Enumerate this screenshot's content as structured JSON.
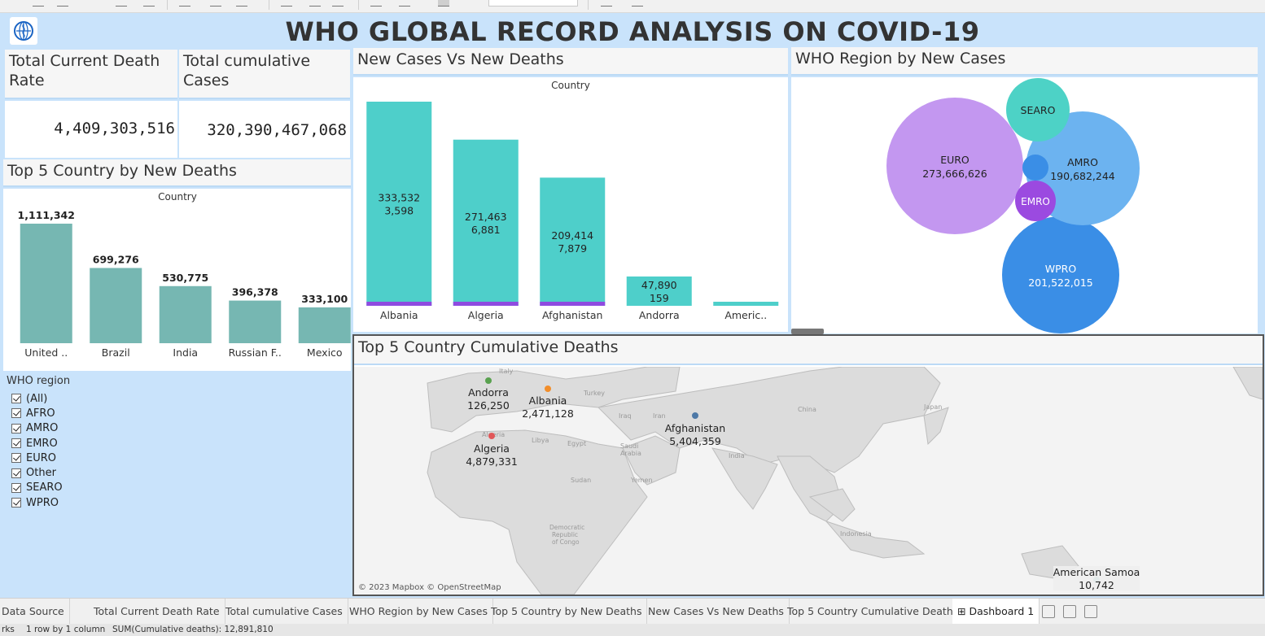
{
  "dashboard": {
    "title": "WHO GLOBAL RECORD ANALYSIS ON COVID-19"
  },
  "kpis": {
    "death_rate": {
      "title": "Total Current Death Rate",
      "value": "4,409,303,516"
    },
    "cumulative_cases": {
      "title": "Total cumulative Cases",
      "value": "320,390,467,068"
    }
  },
  "top5_deaths": {
    "header": "Top  5 Country by New Deaths",
    "axis_title": "Country"
  },
  "new_cases_vs_deaths": {
    "header": "New Cases Vs New Deaths",
    "axis_title": "Country"
  },
  "region_bubbles": {
    "header": "WHO Region by New Cases"
  },
  "map": {
    "header": "Top 5 Country Cumulative Deaths",
    "attribution": "© 2023 Mapbox © OpenStreetMap",
    "places": [
      "Italy",
      "Turkey",
      "Libya",
      "Egypt",
      "Iraq",
      "Iran",
      "Saudi Arabia",
      "China",
      "India",
      "Japan",
      "Sudan",
      "Yemen",
      "Democratic Republic of Congo",
      "Indonesia",
      "Algeria"
    ]
  },
  "filter": {
    "title": "WHO region",
    "options": [
      "(All)",
      "AFRO",
      "AMRO",
      "EMRO",
      "EURO",
      "Other",
      "SEARO",
      "WPRO"
    ]
  },
  "tabs": [
    "Data Source",
    "Total Current Death Rate",
    "Total cumulative Cases",
    "WHO Region by New Cases",
    "Top  5 Country by New Deaths",
    "New Cases Vs New Deaths",
    "Top 5 Country Cumulative Deaths",
    "Dashboard 1"
  ],
  "status": {
    "marks": "rks",
    "dims": "1 row by 1 column",
    "sum": "SUM(Cumulative deaths): 12,891,810"
  },
  "colors": {
    "teal_bar": "#76b7b2",
    "cyan_bar": "#4ecfca",
    "purple_deaths": "#8f4be0",
    "dashboard_bg": "#c9e3fb",
    "euro": "#c397f0",
    "searo": "#4dd2c6",
    "amro": "#6cb3f0",
    "emro": "#9b4ae0",
    "wpro": "#3a8ee6",
    "small_bubble": "#3a8ee6"
  },
  "chart_data": [
    {
      "type": "bar",
      "title": "Top  5 Country by New Deaths",
      "xlabel": "Country",
      "categories": [
        "United ..",
        "Brazil",
        "India",
        "Russian F..",
        "Mexico"
      ],
      "values": [
        1111342,
        699276,
        530775,
        396378,
        333100
      ],
      "labels": [
        "1,111,342",
        "699,276",
        "530,775",
        "396,378",
        "333,100"
      ]
    },
    {
      "type": "bar",
      "title": "New Cases Vs New Deaths",
      "xlabel": "Country",
      "categories": [
        "Albania",
        "Algeria",
        "Afghanistan",
        "Andorra",
        "Americ.."
      ],
      "series": [
        {
          "name": "New cases",
          "values": [
            333532,
            271463,
            209414,
            47890,
            0
          ]
        },
        {
          "name": "New deaths",
          "values": [
            3598,
            6881,
            7879,
            159,
            0
          ]
        }
      ],
      "labels": [
        [
          "333,532",
          "3,598"
        ],
        [
          "271,463",
          "6,881"
        ],
        [
          "209,414",
          "7,879"
        ],
        [
          "47,890",
          "159"
        ],
        [
          "",
          ""
        ]
      ]
    },
    {
      "type": "bubble",
      "title": "WHO Region by New Cases",
      "items": [
        {
          "name": "EURO",
          "value": 273666626,
          "label": "273,666,626"
        },
        {
          "name": "WPRO",
          "value": 201522015,
          "label": "201,522,015"
        },
        {
          "name": "AMRO",
          "value": 190682244,
          "label": "190,682,244"
        },
        {
          "name": "SEARO"
        },
        {
          "name": "EMRO"
        },
        {
          "name": ""
        }
      ]
    },
    {
      "type": "map",
      "title": "Top 5 Country Cumulative Deaths",
      "points": [
        {
          "name": "Afghanistan",
          "value": 5404359,
          "label": "5,404,359",
          "color": "#4e79a7"
        },
        {
          "name": "Algeria",
          "value": 4879331,
          "label": "4,879,331",
          "color": "#e15759"
        },
        {
          "name": "Albania",
          "value": 2471128,
          "label": "2,471,128",
          "color": "#f28e2b"
        },
        {
          "name": "Andorra",
          "value": 126250,
          "label": "126,250",
          "color": "#59a14f"
        },
        {
          "name": "American Samoa",
          "value": 10742,
          "label": "10,742",
          "color": "#76b7b2"
        }
      ]
    }
  ]
}
